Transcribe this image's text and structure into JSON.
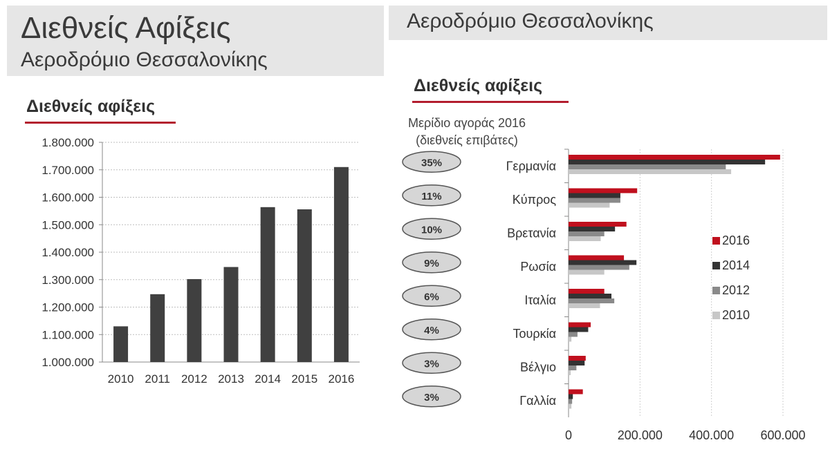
{
  "left": {
    "title": "Διεθνείς Αφίξεις",
    "subtitle": "Αεροδρόμιο Θεσσαλονίκης",
    "section_heading": "Διεθνείς αφίξεις"
  },
  "right": {
    "title": "Αεροδρόμιο Θεσσαλονίκης",
    "section_heading": "Διεθνείς αφίξεις",
    "share_label_line1": "Μερίδιο αγοράς 2016",
    "share_label_line2": "(διεθνείς επιβάτες)"
  },
  "colors": {
    "accent": "#b31d2e",
    "bar_dark": "#404040"
  },
  "chart_data": [
    {
      "type": "bar",
      "title": "Διεθνείς αφίξεις",
      "categories": [
        "2010",
        "2011",
        "2012",
        "2013",
        "2014",
        "2015",
        "2016"
      ],
      "values": [
        1130000,
        1247000,
        1302000,
        1346000,
        1564000,
        1556000,
        1710000
      ],
      "ylim": [
        1000000,
        1800000
      ],
      "yticks": [
        "1.000.000",
        "1.100.000",
        "1.200.000",
        "1.300.000",
        "1.400.000",
        "1.500.000",
        "1.600.000",
        "1.700.000",
        "1.800.000"
      ],
      "grid": true,
      "color": "#404040"
    },
    {
      "type": "bar",
      "orientation": "horizontal",
      "title": "Διεθνείς αφίξεις",
      "categories": [
        "Γερμανία",
        "Κύπρος",
        "Βρετανία",
        "Ρωσία",
        "Ιταλία",
        "Τουρκία",
        "Βέλγιο",
        "Γαλλία"
      ],
      "market_share_2016": [
        "35%",
        "11%",
        "10%",
        "9%",
        "6%",
        "4%",
        "3%",
        "3%"
      ],
      "series": [
        {
          "name": "2016",
          "color": "#c0101e",
          "values": [
            592000,
            192000,
            162000,
            155000,
            100000,
            62000,
            48000,
            40000
          ]
        },
        {
          "name": "2014",
          "color": "#333333",
          "values": [
            550000,
            145000,
            130000,
            190000,
            120000,
            55000,
            45000,
            12000
          ]
        },
        {
          "name": "2012",
          "color": "#8a8a8a",
          "values": [
            440000,
            145000,
            100000,
            170000,
            128000,
            25000,
            22000,
            10000
          ]
        },
        {
          "name": "2010",
          "color": "#c7c7c7",
          "values": [
            455000,
            115000,
            90000,
            100000,
            88000,
            8000,
            6000,
            8000
          ]
        }
      ],
      "xlim": [
        0,
        600000
      ],
      "xticks": [
        "0",
        "200.000",
        "400.000",
        "600.000"
      ],
      "legend_position": "right",
      "grid": true
    }
  ]
}
